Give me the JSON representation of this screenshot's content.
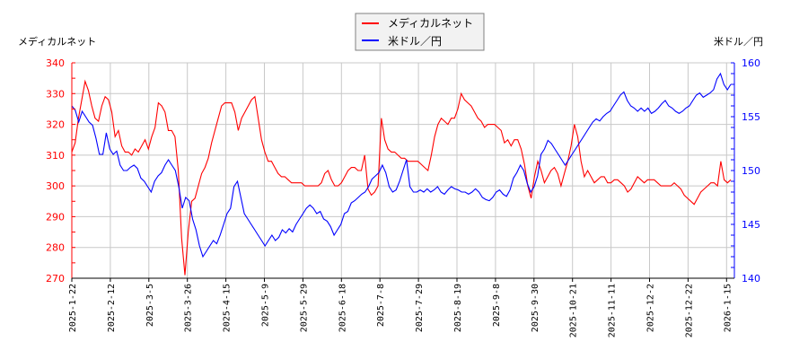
{
  "chart_data": {
    "type": "line",
    "title": "",
    "legend": {
      "position": "top-center",
      "entries": [
        {
          "label": "メディカルネット",
          "color": "#ff0000"
        },
        {
          "label": "米ドル／円",
          "color": "#0000ff"
        }
      ]
    },
    "y_left": {
      "label": "メディカルネット",
      "color": "#ff0000",
      "range": [
        270,
        340
      ],
      "ticks": [
        270,
        280,
        290,
        300,
        310,
        320,
        330,
        340
      ]
    },
    "y_right": {
      "label": "米ドル／円",
      "color": "#0000ff",
      "range": [
        140,
        160
      ],
      "ticks": [
        140,
        145,
        150,
        155,
        160
      ]
    },
    "x_tick_labels": [
      "2025-1-22",
      "2025-2-12",
      "2025-3-5",
      "2025-3-26",
      "2025-4-15",
      "2025-5-9",
      "2025-5-29",
      "2025-6-18",
      "2025-7-8",
      "2025-7-29",
      "2025-8-19",
      "2025-9-8",
      "2025-9-30",
      "2025-10-21",
      "2025-11-11",
      "2025-12-2",
      "2025-12-22",
      "2026-1-15"
    ],
    "grid": true,
    "series": [
      {
        "name": "メディカルネット",
        "axis": "left",
        "color": "#ff0000",
        "values": [
          311,
          314,
          322,
          328,
          334,
          331,
          326,
          322,
          321,
          326,
          329,
          328,
          324,
          316,
          318,
          313,
          311,
          311,
          310,
          312,
          311,
          313,
          315,
          312,
          316,
          319,
          327,
          326,
          324,
          318,
          318,
          316,
          305,
          283,
          271,
          285,
          295,
          296,
          300,
          304,
          306,
          309,
          314,
          318,
          322,
          326,
          327,
          327,
          327,
          324,
          318,
          322,
          324,
          326,
          328,
          329,
          322,
          315,
          311,
          308,
          308,
          306,
          304,
          303,
          303,
          302,
          301,
          301,
          301,
          301,
          300,
          300,
          300,
          300,
          300,
          301,
          304,
          305,
          302,
          300,
          300,
          301,
          303,
          305,
          306,
          306,
          305,
          305,
          310,
          299,
          297,
          298,
          300,
          322,
          315,
          312,
          311,
          311,
          310,
          309,
          309,
          308,
          308,
          308,
          308,
          307,
          306,
          305,
          310,
          316,
          320,
          322,
          321,
          320,
          322,
          322,
          325,
          330,
          328,
          327,
          326,
          324,
          322,
          321,
          319,
          320,
          320,
          320,
          319,
          318,
          314,
          315,
          313,
          315,
          315,
          312,
          307,
          300,
          296,
          303,
          308,
          305,
          301,
          303,
          305,
          306,
          304,
          300,
          304,
          308,
          313,
          320,
          316,
          308,
          303,
          305,
          303,
          301,
          302,
          303,
          303,
          301,
          301,
          302,
          302,
          301,
          300,
          298,
          299,
          301,
          303,
          302,
          301,
          302,
          302,
          302,
          301,
          300,
          300,
          300,
          300,
          301,
          300,
          299,
          297,
          296,
          295,
          294,
          296,
          298,
          299,
          300,
          301,
          301,
          300,
          308,
          302,
          301,
          302
        ]
      },
      {
        "name": "米ドル／円",
        "axis": "right",
        "color": "#0000ff",
        "values": [
          156.0,
          155.6,
          154.5,
          155.5,
          155.0,
          154.5,
          154.2,
          153.0,
          151.5,
          151.5,
          153.5,
          152.0,
          151.5,
          151.8,
          150.5,
          150.0,
          150.0,
          150.3,
          150.5,
          150.2,
          149.3,
          149.0,
          148.5,
          148.0,
          149.0,
          149.5,
          149.8,
          150.5,
          151.0,
          150.5,
          150.0,
          148.5,
          146.5,
          147.5,
          147.2,
          145.5,
          144.5,
          143.0,
          142.0,
          142.5,
          143.0,
          143.5,
          143.2,
          144.0,
          145.0,
          146.0,
          146.5,
          148.5,
          149.0,
          147.5,
          146.0,
          145.5,
          145.0,
          144.5,
          144.0,
          143.5,
          143.0,
          143.5,
          144.0,
          143.5,
          143.8,
          144.5,
          144.2,
          144.6,
          144.3,
          145.0,
          145.5,
          146.0,
          146.5,
          146.8,
          146.5,
          146.0,
          146.2,
          145.5,
          145.3,
          144.8,
          144.0,
          144.5,
          145.0,
          146.0,
          146.2,
          147.0,
          147.2,
          147.5,
          147.8,
          148.0,
          148.5,
          149.2,
          149.5,
          149.8,
          150.5,
          149.8,
          148.5,
          148.0,
          148.2,
          149.0,
          150.0,
          151.0,
          148.5,
          148.0,
          148.0,
          148.2,
          148.0,
          148.3,
          148.0,
          148.2,
          148.5,
          148.0,
          147.8,
          148.2,
          148.5,
          148.3,
          148.2,
          148.0,
          148.0,
          147.8,
          148.0,
          148.3,
          148.0,
          147.5,
          147.3,
          147.2,
          147.5,
          148.0,
          148.2,
          147.8,
          147.6,
          148.2,
          149.3,
          149.8,
          150.5,
          150.0,
          148.8,
          148.0,
          148.5,
          149.5,
          151.5,
          152.0,
          152.8,
          152.5,
          152.0,
          151.5,
          151.0,
          150.5,
          151.0,
          151.5,
          152.0,
          152.5,
          153.0,
          153.5,
          154.0,
          154.5,
          154.8,
          154.6,
          155.0,
          155.3,
          155.5,
          156.0,
          156.5,
          157.0,
          157.3,
          156.5,
          156.0,
          155.8,
          155.5,
          155.8,
          155.5,
          155.8,
          155.3,
          155.5,
          155.8,
          156.2,
          156.5,
          156.0,
          155.8,
          155.5,
          155.3,
          155.5,
          155.8,
          156.0,
          156.5,
          157.0,
          157.2,
          156.8,
          157.0,
          157.2,
          157.5,
          158.5,
          159.0,
          158.0,
          157.5,
          158.0
        ]
      }
    ]
  }
}
